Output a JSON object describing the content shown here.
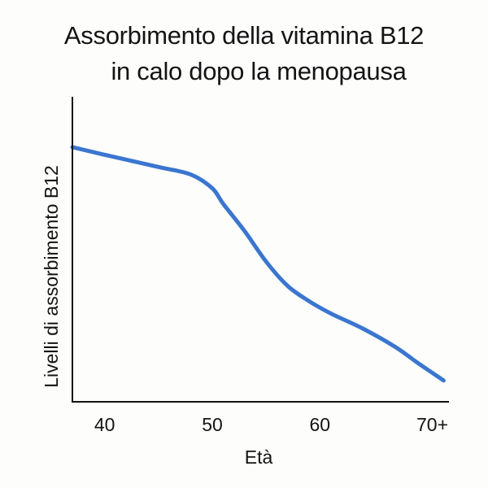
{
  "chart_data": {
    "type": "line",
    "title_lines": [
      "Assorbimento della vitamina B12",
      "in calo dopo la menopausa"
    ],
    "xlabel": "Età",
    "ylabel": "Livelli di assorbimento B12",
    "x_ticks": [
      "40",
      "50",
      "60",
      "70+"
    ],
    "xlim": [
      37,
      72
    ],
    "ylim": [
      0,
      100
    ],
    "grid": false,
    "legend": "none",
    "line_color": "#3a76cf",
    "series": [
      {
        "x": [
          37,
          40,
          45,
          48,
          50,
          51,
          53,
          55,
          57,
          59,
          61,
          64,
          67,
          69,
          71.5
        ],
        "values": [
          83.5,
          81,
          77,
          74.5,
          70,
          65,
          56,
          46,
          38,
          33,
          29,
          24,
          18,
          13,
          7
        ]
      }
    ]
  }
}
